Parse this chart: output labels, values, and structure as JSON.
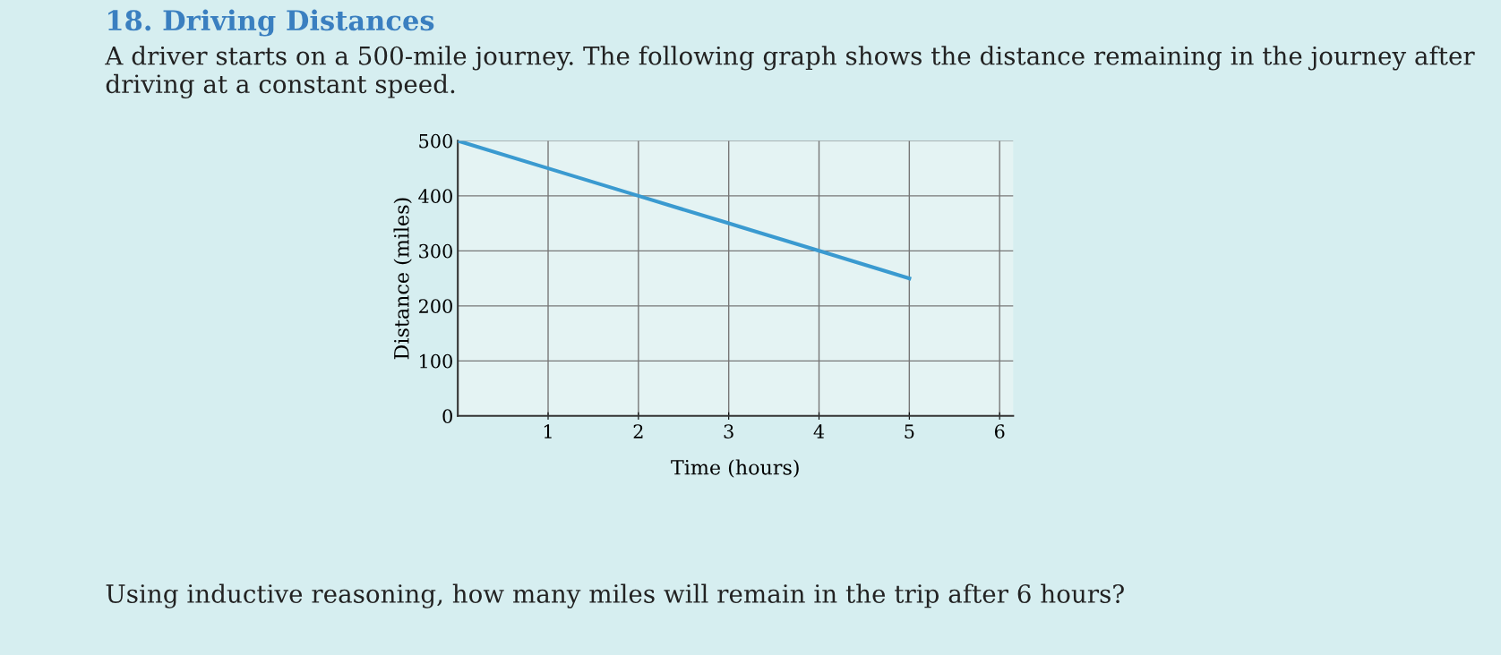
{
  "chart_data": {
    "type": "line",
    "title": "18. Driving Distances",
    "subtitle": "A driver starts on a 500-mile journey. The following graph shows the distance remaining in the journey after driving at a constant speed.",
    "xlabel": "Time (hours)",
    "ylabel": "Distance (miles)",
    "x": [
      0,
      1,
      2,
      3,
      4,
      5
    ],
    "series": [
      {
        "color": "#3a9ad0",
        "values": [
          500,
          450,
          400,
          350,
          300,
          250
        ]
      }
    ],
    "xlim": [
      0,
      6.15
    ],
    "xticks": [
      1,
      2,
      3,
      4,
      5,
      6
    ],
    "ylim": [
      0,
      500
    ],
    "yticks": [
      0,
      100,
      200,
      300,
      400,
      500
    ],
    "grid": true,
    "marker": "none",
    "line_style": "solid",
    "annotations": [
      "Using inductive reasoning, how many miles will remain in the trip after 6 hours?"
    ]
  }
}
